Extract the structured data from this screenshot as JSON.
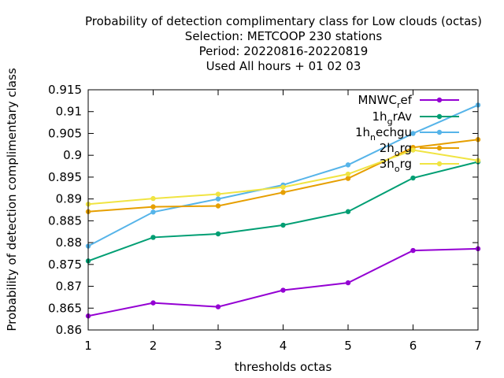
{
  "chart_data": {
    "type": "line",
    "title": [
      "Probability of detection complimentary class  for Low clouds (octas)",
      "Selection: METCOOP    230 stations",
      "Period: 20220816-20220819",
      "Used  All hours  + 01 02 03"
    ],
    "xlabel": "thresholds octas",
    "ylabel": "Probability of detection complimentary class",
    "x": [
      1,
      2,
      3,
      4,
      5,
      6,
      7
    ],
    "xlim": [
      1,
      7
    ],
    "ylim": [
      0.86,
      0.915
    ],
    "yticks": [
      "0.86",
      "0.865",
      "0.87",
      "0.875",
      "0.88",
      "0.885",
      "0.89",
      "0.895",
      "0.9",
      "0.905",
      "0.91",
      "0.915"
    ],
    "xticks": [
      "1",
      "2",
      "3",
      "4",
      "5",
      "6",
      "7"
    ],
    "legend_position": "top-right",
    "series": [
      {
        "name": "MNWC_ref",
        "legend_base": "MNWC",
        "legend_sub": "r",
        "legend_rest": "ef",
        "color": "#9400d3",
        "values": [
          0.8632,
          0.8662,
          0.8653,
          0.8691,
          0.8708,
          0.8782,
          0.8786
        ]
      },
      {
        "name": "1h_grAv",
        "legend_base": "1h",
        "legend_sub": "g",
        "legend_rest": "rAv",
        "color": "#009e73",
        "values": [
          0.8758,
          0.8812,
          0.882,
          0.884,
          0.8871,
          0.8948,
          0.8985
        ]
      },
      {
        "name": "1h_nechgu",
        "legend_base": "1h",
        "legend_sub": "n",
        "legend_rest": "echgu",
        "color": "#56b4e9",
        "values": [
          0.8792,
          0.887,
          0.89,
          0.8932,
          0.8978,
          0.905,
          0.9115
        ]
      },
      {
        "name": "2h_org",
        "legend_base": "2h",
        "legend_sub": "o",
        "legend_rest": "rg",
        "color": "#e69f00",
        "values": [
          0.8871,
          0.8882,
          0.8884,
          0.8915,
          0.8947,
          0.9018,
          0.9036
        ]
      },
      {
        "name": "3h_org",
        "legend_base": "3h",
        "legend_sub": "o",
        "legend_rest": "rg",
        "color": "#f0e442",
        "values": [
          0.8888,
          0.8901,
          0.8911,
          0.8927,
          0.8957,
          0.9012,
          0.8988
        ]
      }
    ]
  }
}
